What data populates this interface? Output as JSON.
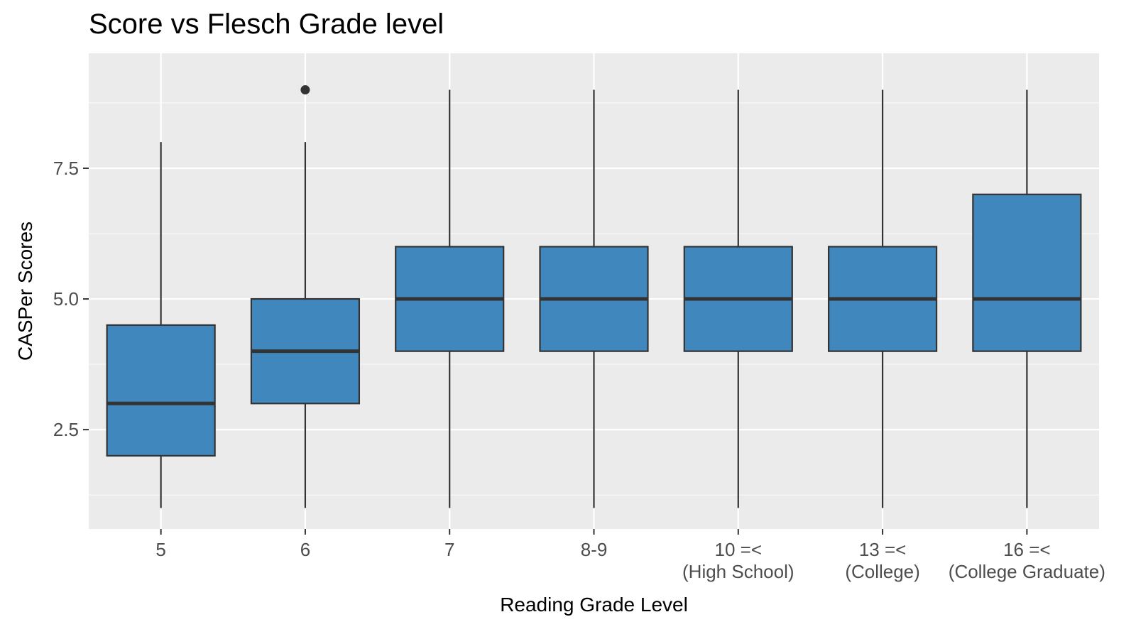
{
  "chart_data": {
    "type": "box",
    "title": "Score vs Flesch Grade level",
    "xlabel": "Reading Grade Level",
    "ylabel": "CASPer Scores",
    "ylim": [
      0.6,
      9.7
    ],
    "yticks": [
      2.5,
      5.0,
      7.5
    ],
    "ytick_labels": [
      "2.5",
      "5.0",
      "7.5"
    ],
    "grid": true,
    "categories": [
      {
        "label": [
          "5"
        ],
        "whisker_low": 1,
        "q1": 2,
        "median": 3,
        "q3": 4.5,
        "whisker_high": 8,
        "outliers": []
      },
      {
        "label": [
          "6"
        ],
        "whisker_low": 1,
        "q1": 3,
        "median": 4,
        "q3": 5,
        "whisker_high": 8,
        "outliers": [
          9
        ]
      },
      {
        "label": [
          "7"
        ],
        "whisker_low": 1,
        "q1": 4,
        "median": 5,
        "q3": 6,
        "whisker_high": 9,
        "outliers": []
      },
      {
        "label": [
          "8-9"
        ],
        "whisker_low": 1,
        "q1": 4,
        "median": 5,
        "q3": 6,
        "whisker_high": 9,
        "outliers": []
      },
      {
        "label": [
          "10 =<",
          "(High School)"
        ],
        "whisker_low": 1,
        "q1": 4,
        "median": 5,
        "q3": 6,
        "whisker_high": 9,
        "outliers": []
      },
      {
        "label": [
          "13 =<",
          "(College)"
        ],
        "whisker_low": 1,
        "q1": 4,
        "median": 5,
        "q3": 6,
        "whisker_high": 9,
        "outliers": []
      },
      {
        "label": [
          "16 =<",
          "(College Graduate)"
        ],
        "whisker_low": 1,
        "q1": 4,
        "median": 5,
        "q3": 7,
        "whisker_high": 9,
        "outliers": []
      }
    ],
    "colors": {
      "panel": "#EBEBEB",
      "grid_major": "#FFFFFF",
      "grid_minor": "#F5F5F5",
      "box_fill": "#3F87BD",
      "box_line": "#333333",
      "tick": "#333333",
      "tick_text": "#4D4D4D"
    }
  }
}
